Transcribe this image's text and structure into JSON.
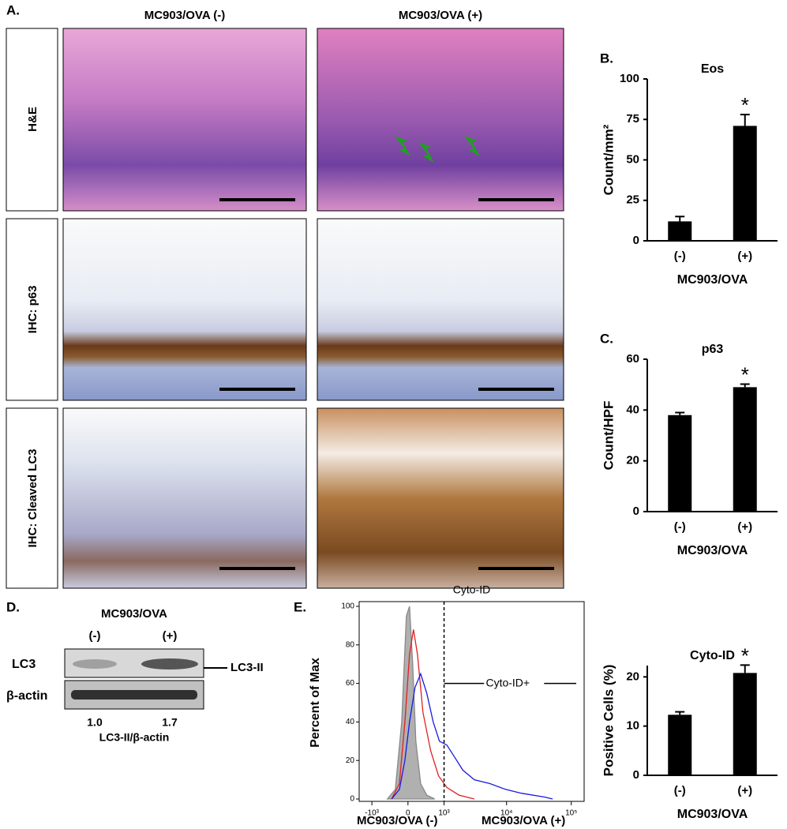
{
  "panel_a": {
    "label": "A.",
    "columns": [
      "MC903/OVA (-)",
      "MC903/OVA (+)"
    ],
    "rows": [
      "H&E",
      "IHC: p63",
      "IHC: Cleaved LC3"
    ]
  },
  "panel_d": {
    "label": "D.",
    "group": "MC903/OVA",
    "categories": [
      "(-)",
      "(+)"
    ],
    "bands": [
      "LC3",
      "β-actin"
    ],
    "band_label": "LC3-II",
    "ratios": [
      "1.0",
      "1.7"
    ],
    "ratio_label": "LC3-II/β-actin"
  },
  "chart_data": [
    {
      "type": "bar",
      "label": "B.",
      "title": "Eos",
      "ylabel": "Count/mm²",
      "xlabel": "MC903/OVA",
      "categories": [
        "(-)",
        "(+)"
      ],
      "values": [
        12,
        71
      ],
      "errors": [
        3,
        7
      ],
      "significance": [
        null,
        "*"
      ],
      "color": "#000000",
      "ylim": [
        0,
        100
      ],
      "yticks": [
        0,
        25,
        50,
        75,
        100
      ]
    },
    {
      "type": "bar",
      "label": "C.",
      "title": "p63",
      "ylabel": "Count/HPF",
      "xlabel": "MC903/OVA",
      "categories": [
        "(-)",
        "(+)"
      ],
      "values": [
        38,
        49
      ],
      "errors": [
        1,
        1.2
      ],
      "significance": [
        null,
        "*"
      ],
      "color": "#000000",
      "ylim": [
        0,
        60
      ],
      "yticks": [
        0,
        20,
        40,
        60
      ]
    },
    {
      "type": "line",
      "label": "E.",
      "title": "Cyto-ID",
      "ylabel": "Percent of Max",
      "xscale": "biexponential",
      "xlim": [
        -1650,
        158000
      ],
      "xticks": [
        {
          "value": -1000,
          "label": "-10³"
        },
        0,
        {
          "value": 1000,
          "label": "10³"
        },
        {
          "value": 10000,
          "label": "10⁴"
        },
        {
          "value": 100000,
          "label": "10⁵"
        }
      ],
      "ylim": [
        0,
        100
      ],
      "yticks": [
        0,
        20,
        40,
        60,
        80,
        100
      ],
      "threshold": 1000,
      "gate_label": "Cyto-ID+",
      "series": [
        {
          "color": "#888888",
          "fill": "#b0b0b0",
          "x": [
            -480,
            -280,
            -135,
            -34,
            34,
            101,
            170,
            280,
            430,
            660
          ],
          "values": [
            0,
            5,
            40,
            95,
            100,
            70,
            30,
            8,
            2,
            0
          ]
        },
        {
          "name": "MC903/OVA (-)",
          "color": "#e02020",
          "x": [
            -370,
            -185,
            -67,
            34,
            118,
            207,
            335,
            540,
            790,
            1120,
            1790,
            3150
          ],
          "values": [
            0,
            8,
            40,
            75,
            88,
            75,
            45,
            25,
            12,
            6,
            2,
            0
          ]
        },
        {
          "name": "MC903/OVA (+)",
          "color": "#1a1ae0",
          "x": [
            -370,
            -185,
            -67,
            34,
            152,
            280,
            430,
            615,
            820,
            1120,
            1500,
            2070,
            3150,
            5520,
            9650,
            16900,
            39100,
            51600
          ],
          "values": [
            0,
            5,
            20,
            40,
            58,
            65,
            55,
            40,
            30,
            28,
            22,
            15,
            10,
            8,
            5,
            3,
            1,
            0
          ]
        }
      ]
    },
    {
      "type": "bar",
      "title": "Cyto-ID",
      "ylabel": "Positive Cells (%)",
      "xlabel": "MC903/OVA",
      "categories": [
        "(-)",
        "(+)"
      ],
      "values": [
        12.3,
        20.8
      ],
      "errors": [
        0.6,
        1.6
      ],
      "significance": [
        null,
        "*"
      ],
      "color": "#000000",
      "ylim": [
        0,
        22.3
      ],
      "yticks": [
        0,
        10,
        20
      ]
    }
  ]
}
